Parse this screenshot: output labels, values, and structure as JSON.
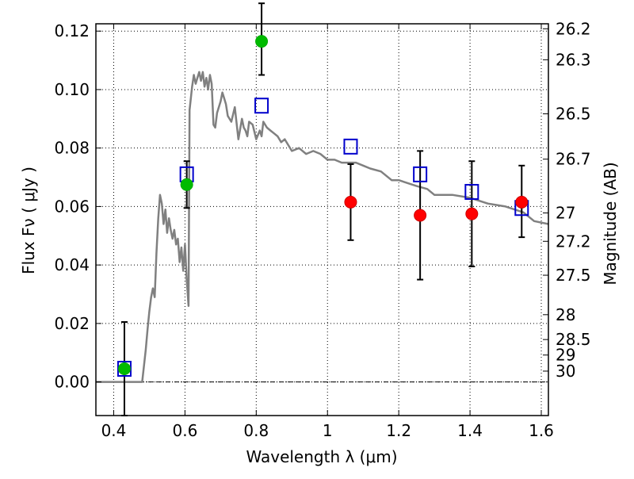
{
  "chart_data": {
    "type": "scatter",
    "title": "",
    "xlabel": "Wavelength  λ (μm)",
    "ylabel": "Flux  Fν  ( μJy )",
    "y2label": "Magnitude (AB)",
    "xlim": [
      0.35,
      1.62
    ],
    "ylim": [
      -0.0115,
      0.1225
    ],
    "grid": true,
    "xticks": [
      0.4,
      0.6,
      0.8,
      1.0,
      1.2,
      1.4,
      1.6
    ],
    "xtick_labels": [
      "0.4",
      "0.6",
      "0.8",
      "1",
      "1.2",
      "1.4",
      "1.6"
    ],
    "yticks": [
      0.0,
      0.02,
      0.04,
      0.06,
      0.08,
      0.1,
      0.12
    ],
    "ytick_labels": [
      "0.00",
      "0.02",
      "0.04",
      "0.06",
      "0.08",
      "0.10",
      "0.12"
    ],
    "right_ticks": [
      {
        "label": "26.2",
        "flux": 0.1208
      },
      {
        "label": "26.3",
        "flux": 0.1102
      },
      {
        "label": "26.5",
        "flux": 0.0917
      },
      {
        "label": "26.7",
        "flux": 0.0762
      },
      {
        "label": "27",
        "flux": 0.0578
      },
      {
        "label": "27.2",
        "flux": 0.0481
      },
      {
        "label": "27.5",
        "flux": 0.0365
      },
      {
        "label": "28",
        "flux": 0.023
      },
      {
        "label": "28.5",
        "flux": 0.0145
      },
      {
        "label": "29",
        "flux": 0.0092
      },
      {
        "label": "30",
        "flux": 0.0037
      }
    ],
    "zero_line": 0.0,
    "colors": {
      "model": "#808080",
      "green_points": "#00bb00",
      "red_points": "#ff0000",
      "model_squares": "#0000cc",
      "errorbars": "#000000"
    },
    "model_curve": {
      "x": [
        0.35,
        0.4,
        0.43,
        0.445,
        0.46,
        0.47,
        0.48,
        0.49,
        0.495,
        0.5,
        0.505,
        0.51,
        0.515,
        0.52,
        0.525,
        0.53,
        0.535,
        0.54,
        0.545,
        0.55,
        0.555,
        0.56,
        0.565,
        0.57,
        0.575,
        0.58,
        0.585,
        0.59,
        0.595,
        0.6,
        0.605,
        0.61,
        0.613,
        0.62,
        0.625,
        0.63,
        0.635,
        0.64,
        0.645,
        0.65,
        0.655,
        0.66,
        0.665,
        0.67,
        0.675,
        0.68,
        0.685,
        0.69,
        0.7,
        0.705,
        0.71,
        0.715,
        0.72,
        0.73,
        0.74,
        0.75,
        0.76,
        0.765,
        0.77,
        0.775,
        0.78,
        0.79,
        0.8,
        0.81,
        0.815,
        0.82,
        0.83,
        0.84,
        0.85,
        0.86,
        0.87,
        0.88,
        0.89,
        0.9,
        0.92,
        0.94,
        0.96,
        0.98,
        1.0,
        1.02,
        1.04,
        1.06,
        1.08,
        1.1,
        1.12,
        1.15,
        1.18,
        1.2,
        1.25,
        1.28,
        1.3,
        1.35,
        1.4,
        1.45,
        1.5,
        1.55,
        1.58,
        1.62
      ],
      "y": [
        0.0,
        0.0,
        0.0,
        0.0,
        0.0,
        0.0,
        0.0,
        0.011,
        0.018,
        0.024,
        0.029,
        0.032,
        0.029,
        0.044,
        0.056,
        0.064,
        0.061,
        0.054,
        0.059,
        0.051,
        0.056,
        0.052,
        0.049,
        0.052,
        0.047,
        0.049,
        0.041,
        0.046,
        0.038,
        0.047,
        0.035,
        0.026,
        0.093,
        0.101,
        0.105,
        0.102,
        0.104,
        0.106,
        0.103,
        0.106,
        0.101,
        0.104,
        0.1,
        0.105,
        0.102,
        0.088,
        0.087,
        0.092,
        0.096,
        0.099,
        0.097,
        0.095,
        0.091,
        0.089,
        0.094,
        0.083,
        0.09,
        0.087,
        0.086,
        0.084,
        0.089,
        0.088,
        0.083,
        0.086,
        0.084,
        0.089,
        0.087,
        0.086,
        0.085,
        0.084,
        0.082,
        0.083,
        0.081,
        0.079,
        0.08,
        0.078,
        0.079,
        0.078,
        0.076,
        0.076,
        0.075,
        0.075,
        0.075,
        0.074,
        0.073,
        0.072,
        0.069,
        0.069,
        0.067,
        0.066,
        0.064,
        0.064,
        0.063,
        0.061,
        0.06,
        0.058,
        0.055,
        0.054
      ]
    },
    "series": [
      {
        "marker": "circle",
        "color": "green",
        "x": [
          0.43,
          0.605,
          0.815
        ],
        "y": [
          0.0045,
          0.0675,
          0.1165
        ],
        "yerr_low": [
          null,
          null,
          0.0115
        ],
        "yerr_high": [
          null,
          null,
          0.013
        ]
      },
      {
        "marker": "circle",
        "color": "red",
        "x": [
          1.065,
          1.26,
          1.405,
          1.545
        ],
        "y": [
          0.0615,
          0.057,
          0.0575,
          0.0615
        ],
        "yerr_low": [
          0.013,
          0.022,
          0.018,
          0.012
        ],
        "yerr_high": [
          0.013,
          0.022,
          0.018,
          0.0125
        ]
      },
      {
        "marker": "square-open",
        "color": "blue",
        "x": [
          0.43,
          0.605,
          0.815,
          1.065,
          1.26,
          1.405,
          1.545
        ],
        "y": [
          0.0045,
          0.071,
          0.0945,
          0.0805,
          0.071,
          0.065,
          0.0595
        ]
      }
    ],
    "errorbars_on_points": [
      {
        "x": 0.43,
        "y": 0.0045,
        "low": 0.016,
        "high": 0.016
      },
      {
        "x": 0.605,
        "y": 0.0675,
        "low": 0.008,
        "high": 0.008
      },
      {
        "x": 0.815,
        "y": 0.1165,
        "low": 0.0115,
        "high": 0.013
      }
    ]
  }
}
